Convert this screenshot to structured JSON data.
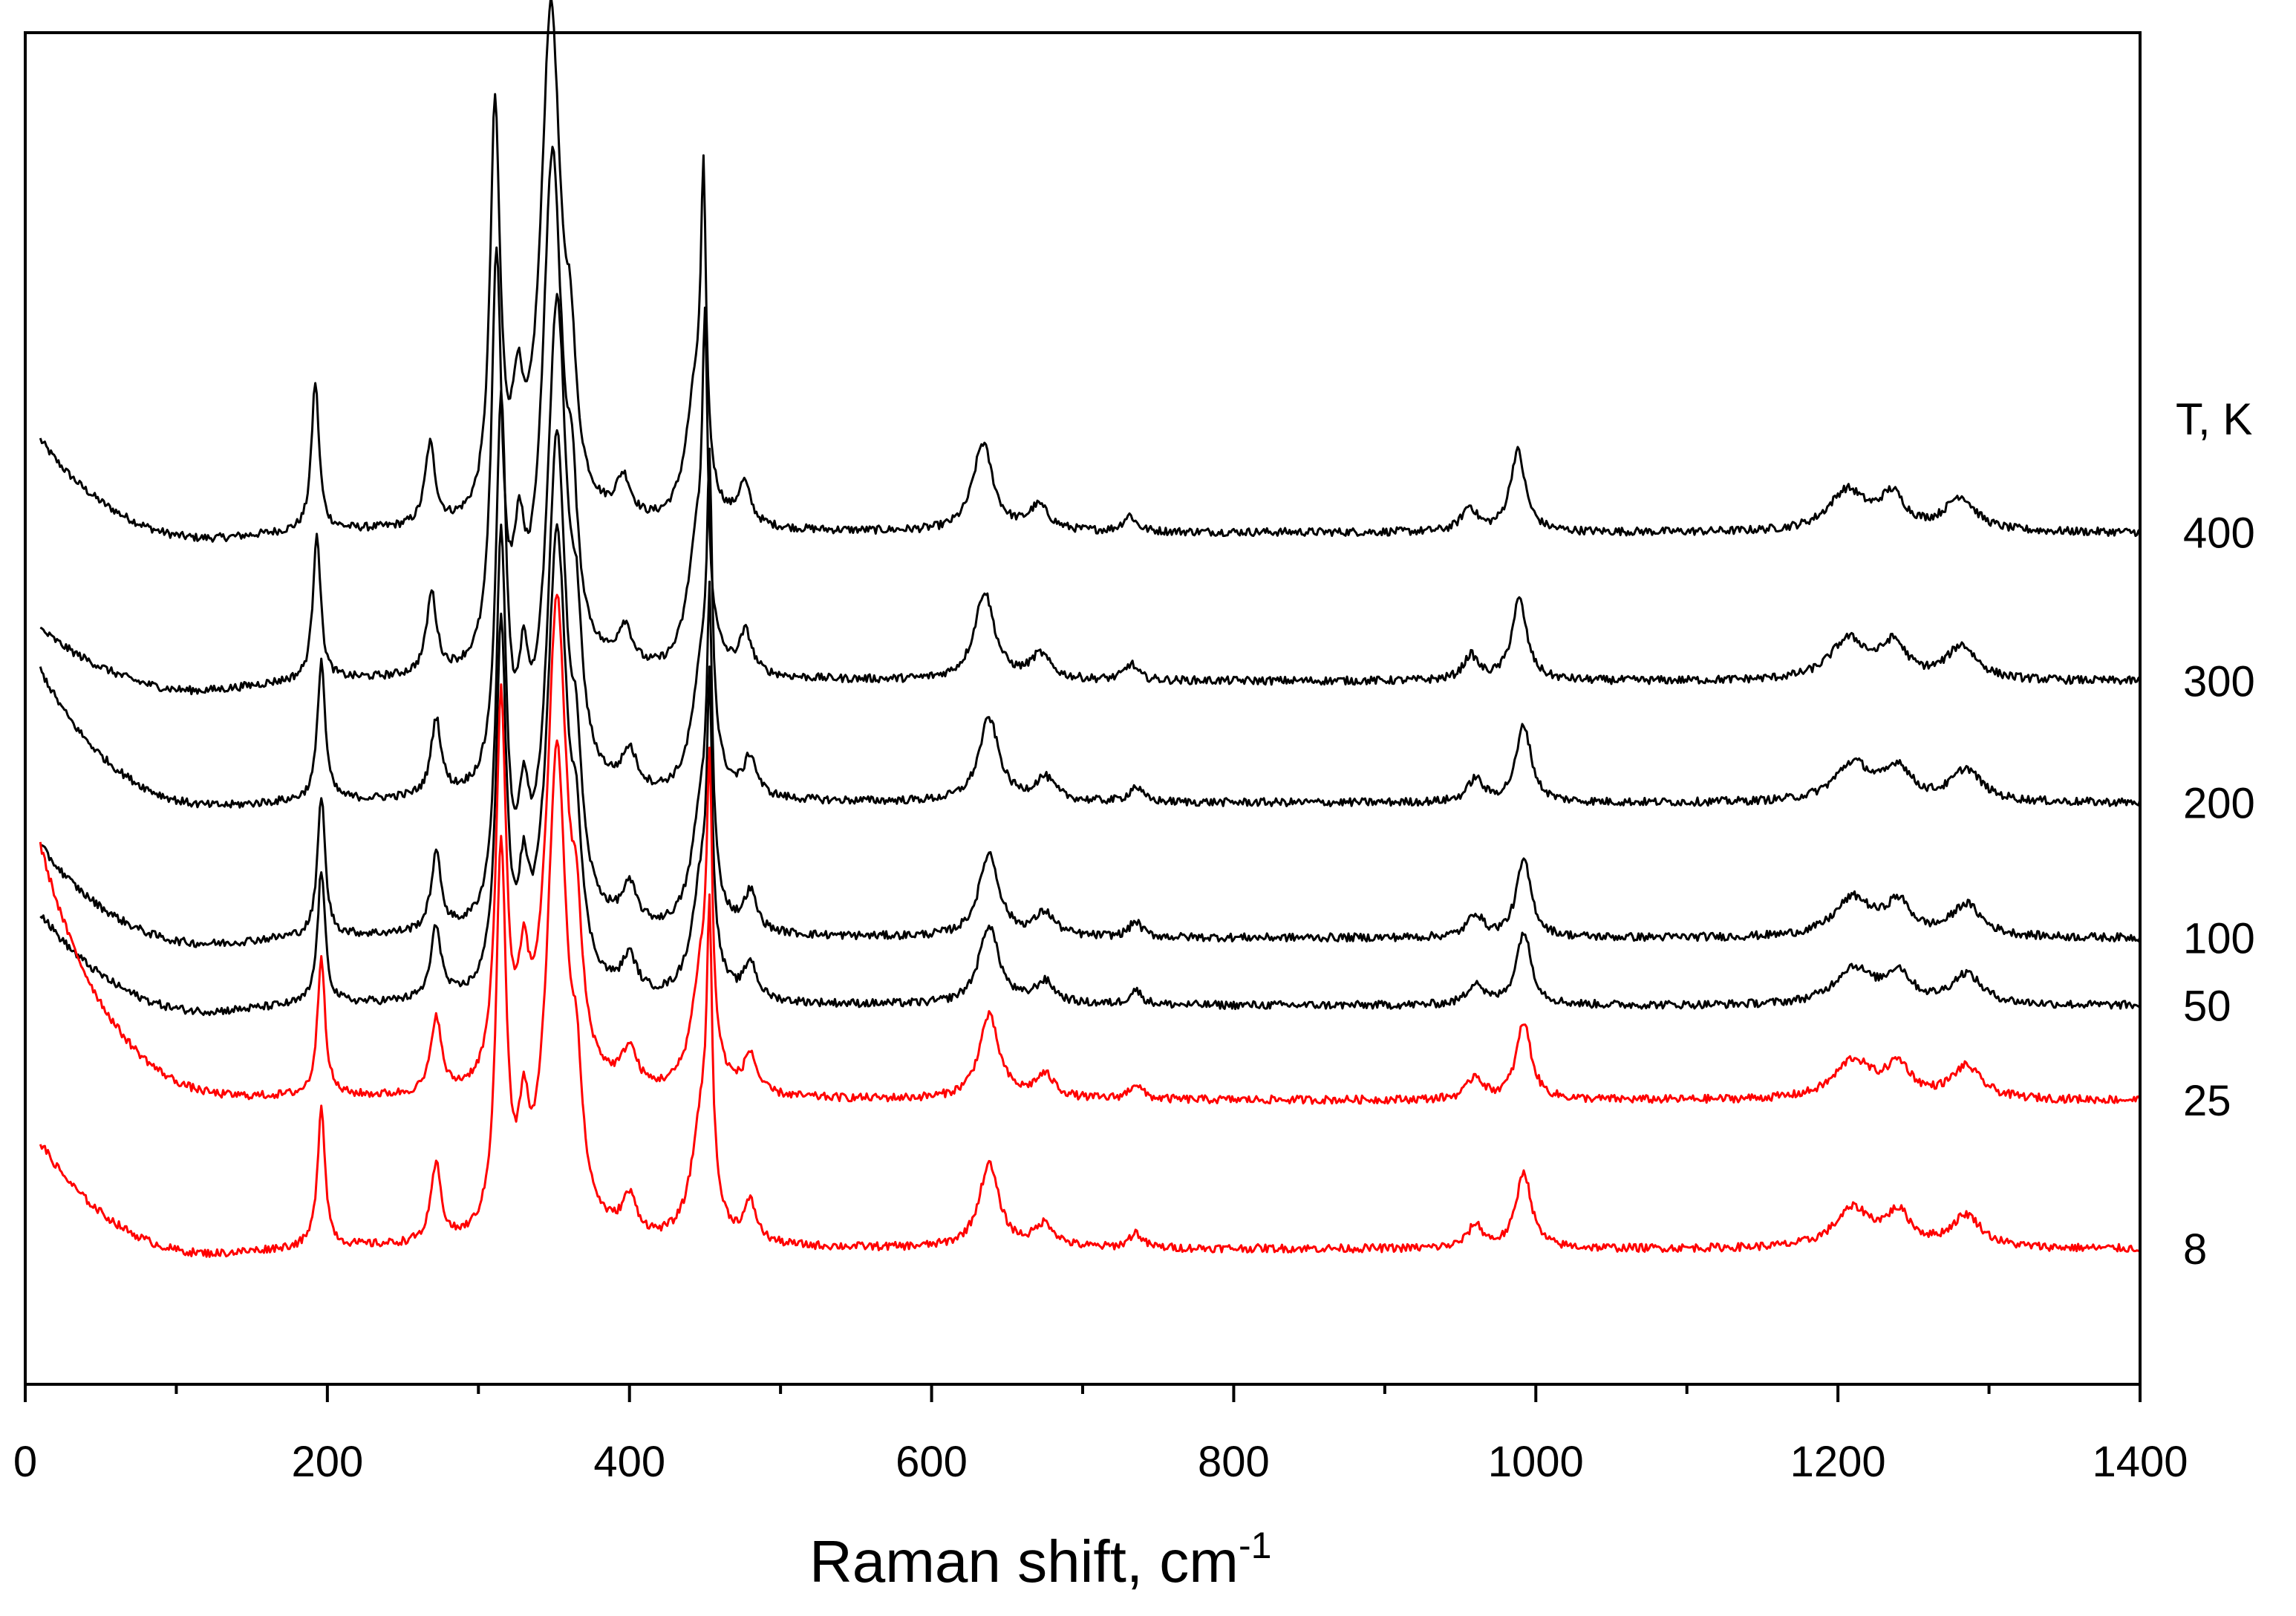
{
  "chart_data": {
    "type": "line",
    "title": "",
    "xlabel": "Raman shift, cm",
    "xlabel_superscript": "-1",
    "ylabel": "",
    "xlim": [
      0,
      1400
    ],
    "x_ticks": [
      0,
      200,
      400,
      600,
      800,
      1000,
      1200,
      1400
    ],
    "x_tick_labels": [
      "0",
      "200",
      "400",
      "600",
      "800",
      "1000",
      "1200",
      "1400"
    ],
    "legend_title": "T, K",
    "grid": false,
    "y_axis_ticks_shown": false,
    "series": [
      {
        "name": "400",
        "color": "#000000",
        "baseline": 0.63,
        "start": 0.7,
        "scale": 1.0,
        "shift": -4
      },
      {
        "name": "300",
        "color": "#000000",
        "baseline": 0.52,
        "start": 0.56,
        "scale": 1.0,
        "shift": -3
      },
      {
        "name": "200",
        "color": "#000000",
        "baseline": 0.43,
        "start": 0.53,
        "scale": 0.95,
        "shift": 0
      },
      {
        "name": "100",
        "color": "#000000",
        "baseline": 0.33,
        "start": 0.4,
        "scale": 0.95,
        "shift": 0
      },
      {
        "name": "50",
        "color": "#000000",
        "baseline": 0.28,
        "start": 0.35,
        "scale": 0.9,
        "shift": 0
      },
      {
        "name": "25",
        "color": "#ff0000",
        "baseline": 0.21,
        "start": 0.4,
        "scale": 0.95,
        "shift": 0
      },
      {
        "name": "8",
        "color": "#ff0000",
        "baseline": 0.1,
        "start": 0.18,
        "scale": 0.95,
        "shift": 0
      }
    ],
    "peaks": [
      {
        "x": 196,
        "h": 0.11,
        "w": 3.0
      },
      {
        "x": 272,
        "h": 0.06,
        "w": 4.0
      },
      {
        "x": 315,
        "h": 0.3,
        "w": 4.0
      },
      {
        "x": 330,
        "h": 0.07,
        "w": 4.0
      },
      {
        "x": 352,
        "h": 0.38,
        "w": 8.0
      },
      {
        "x": 365,
        "h": 0.08,
        "w": 4.0
      },
      {
        "x": 400,
        "h": 0.03,
        "w": 6.0
      },
      {
        "x": 448,
        "h": 0.1,
        "w": 8.0
      },
      {
        "x": 453,
        "h": 0.2,
        "w": 2.0
      },
      {
        "x": 480,
        "h": 0.03,
        "w": 5.0
      },
      {
        "x": 638,
        "h": 0.065,
        "w": 8.0
      },
      {
        "x": 675,
        "h": 0.018,
        "w": 8.0
      },
      {
        "x": 735,
        "h": 0.012,
        "w": 5.0
      },
      {
        "x": 960,
        "h": 0.018,
        "w": 6.0
      },
      {
        "x": 992,
        "h": 0.06,
        "w": 6.0
      },
      {
        "x": 1210,
        "h": 0.03,
        "w": 15.0
      },
      {
        "x": 1240,
        "h": 0.025,
        "w": 10.0
      },
      {
        "x": 1285,
        "h": 0.025,
        "w": 12.0
      }
    ]
  }
}
